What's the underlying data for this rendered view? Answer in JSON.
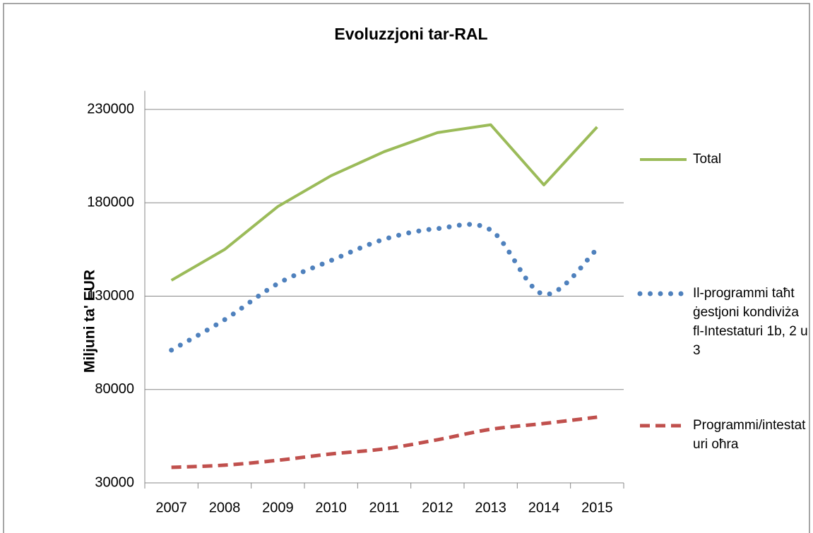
{
  "chart_data": {
    "type": "line",
    "title": "Evoluzzjoni tar-RAL",
    "y_label": "Miljuni ta' EUR",
    "categories": [
      "2007",
      "2008",
      "2009",
      "2010",
      "2011",
      "2012",
      "2013",
      "2014",
      "2015"
    ],
    "series": [
      {
        "name": "Total",
        "color": "#9bbb59",
        "style": "solid",
        "values": [
          138500,
          155000,
          178000,
          194500,
          207400,
          217600,
          221800,
          189600,
          220600
        ]
      },
      {
        "name": "Il-programmi taħt ġestjoni kondiviża fl-Intestaturi 1b, 2 u 3",
        "color": "#4f81bd",
        "style": "dotted",
        "values": [
          101100,
          117400,
          136700,
          149100,
          160500,
          166200,
          165400,
          131000,
          155200
        ]
      },
      {
        "name": "Programmi/intestaturi oħra",
        "color": "#c0504d",
        "style": "dashed",
        "values": [
          38300,
          39500,
          42100,
          45500,
          48200,
          53100,
          58700,
          61800,
          65200
        ]
      }
    ],
    "ylim": [
      30000,
      240000
    ],
    "yticks": [
      30000,
      80000,
      130000,
      180000,
      230000
    ],
    "grid": true,
    "legend": "right"
  }
}
